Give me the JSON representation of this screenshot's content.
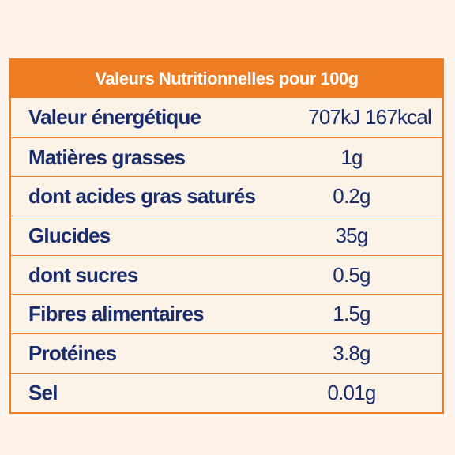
{
  "nutrition_table": {
    "title": "Valeurs Nutritionnelles pour 100g",
    "rows": [
      {
        "label": "Valeur énergétique",
        "value": "707kJ 167kcal"
      },
      {
        "label": "Matières grasses",
        "value": "1g"
      },
      {
        "label": "dont acides gras saturés",
        "value": "0.2g"
      },
      {
        "label": "Glucides",
        "value": "35g"
      },
      {
        "label": "dont sucres",
        "value": "0.5g"
      },
      {
        "label": "Fibres alimentaires",
        "value": "1.5g"
      },
      {
        "label": "Protéines",
        "value": "3.8g"
      },
      {
        "label": "Sel",
        "value": "0.01g"
      }
    ]
  },
  "colors": {
    "accent": "#ef7d23",
    "text": "#1a2c6a",
    "background": "#fdf3ea"
  }
}
